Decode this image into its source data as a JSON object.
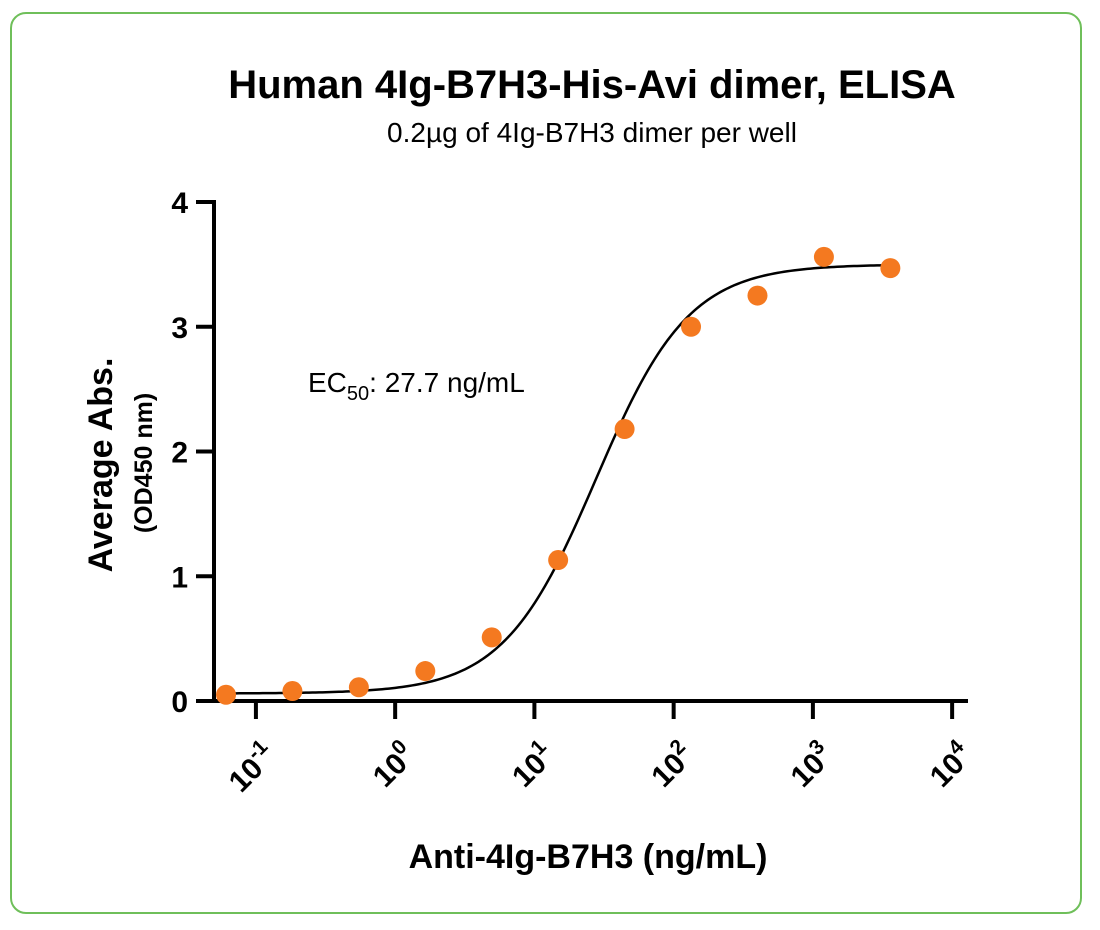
{
  "chart_data": {
    "type": "scatter",
    "title": "Human 4Ig-B7H3-His-Avi dimer, ELISA",
    "subtitle": "0.2µg of 4Ig-B7H3 dimer per well",
    "xlabel": "Anti-4Ig-B7H3 (ng/mL)",
    "ylabel": "Average Abs.",
    "ylabel_sub": "(OD450 nm)",
    "xscale": "log",
    "xlim": [
      0.05,
      13000
    ],
    "ylim": [
      0,
      4
    ],
    "x_ticks": [
      {
        "value": 0.1,
        "base": "10",
        "exp": "-1"
      },
      {
        "value": 1,
        "base": "10",
        "exp": "0"
      },
      {
        "value": 10,
        "base": "10",
        "exp": "1"
      },
      {
        "value": 100,
        "base": "10",
        "exp": "2"
      },
      {
        "value": 1000,
        "base": "10",
        "exp": "3"
      },
      {
        "value": 10000,
        "base": "10",
        "exp": "4"
      }
    ],
    "y_ticks": [
      "0",
      "1",
      "2",
      "3",
      "4"
    ],
    "series": [
      {
        "points": [
          {
            "x": 0.061,
            "y": 0.05
          },
          {
            "x": 0.1829,
            "y": 0.08
          },
          {
            "x": 0.5487,
            "y": 0.11
          },
          {
            "x": 1.646,
            "y": 0.24
          },
          {
            "x": 4.938,
            "y": 0.51
          },
          {
            "x": 14.81,
            "y": 1.13
          },
          {
            "x": 44.44,
            "y": 2.18
          },
          {
            "x": 133.3,
            "y": 3.0
          },
          {
            "x": 400,
            "y": 3.25
          },
          {
            "x": 1200,
            "y": 3.56
          },
          {
            "x": 3600,
            "y": 3.47
          }
        ],
        "color": "#f47920"
      }
    ],
    "fit": {
      "type": "4PL",
      "bottom": 0.06,
      "top": 3.5,
      "ec50": 27.7,
      "hill": 1.3,
      "color": "#000000"
    },
    "annotation": {
      "prefix": "EC",
      "subscript": "50",
      "text": ": 27.7 ng/mL"
    },
    "grid": false,
    "legend": "none"
  },
  "colors": {
    "border": "#6fbf5a",
    "marker": "#f47920",
    "axis": "#000000"
  }
}
